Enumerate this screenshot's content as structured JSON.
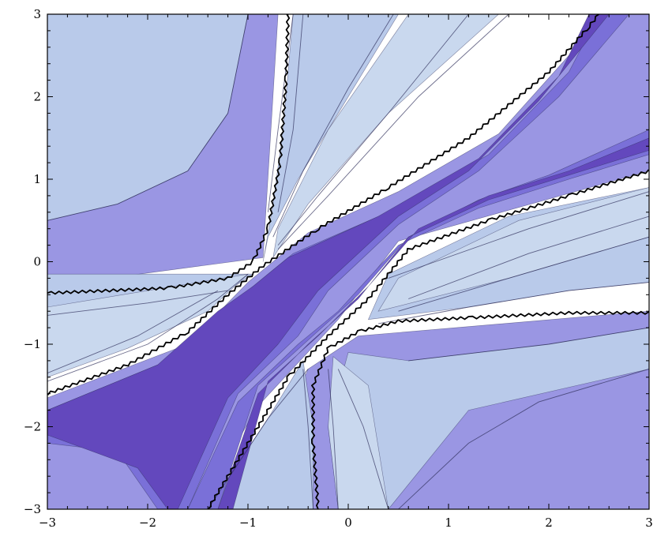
{
  "chart_data": {
    "type": "contour",
    "title": "",
    "xlabel": "",
    "ylabel": "",
    "xlim": [
      -3,
      3
    ],
    "ylim": [
      -3,
      3
    ],
    "grid": false,
    "xticks": [
      {
        "value": -3,
        "label": "−3"
      },
      {
        "value": -2,
        "label": "−2"
      },
      {
        "value": -1,
        "label": "−1"
      },
      {
        "value": 0,
        "label": "0"
      },
      {
        "value": 1,
        "label": "1"
      },
      {
        "value": 2,
        "label": "2"
      },
      {
        "value": 3,
        "label": "3"
      }
    ],
    "yticks": [
      {
        "value": 3,
        "label": "3"
      },
      {
        "value": 2,
        "label": "2"
      },
      {
        "value": 1,
        "label": "1"
      },
      {
        "value": 0,
        "label": "0"
      },
      {
        "value": -1,
        "label": "−1"
      },
      {
        "value": -2,
        "label": "−2"
      },
      {
        "value": -3,
        "label": "−3"
      }
    ],
    "colors": {
      "background": "#9a96e3",
      "deep": "#7a70d8",
      "darkest": "#6348bd",
      "light": "#b9caea",
      "pale": "#c9d8ee",
      "white": "#ffffff",
      "line": "#2e2e5a",
      "zero_curve": "#000000"
    },
    "regions": [
      {
        "fill": "white",
        "polygon": [
          [
            -3,
            -1.65
          ],
          [
            -1.6,
            -1.0
          ],
          [
            -1.0,
            -0.25
          ],
          [
            -0.8,
            -0.05
          ],
          [
            -0.4,
            0.35
          ],
          [
            0.5,
            0.85
          ],
          [
            1.5,
            1.55
          ],
          [
            2.2,
            2.5
          ],
          [
            2.5,
            3
          ],
          [
            -0.7,
            3
          ],
          [
            -0.85,
            0.05
          ],
          [
            -3,
            -0.3
          ],
          [
            -3,
            -3
          ],
          [
            -1.0,
            -3
          ],
          [
            -0.4,
            -1.3
          ],
          [
            0.1,
            -0.9
          ],
          [
            3,
            -0.6
          ],
          [
            3,
            1.1
          ],
          [
            0.5,
            0.25
          ],
          [
            -0.1,
            -0.7
          ],
          [
            -0.9,
            -1.75
          ],
          [
            -1.5,
            -3
          ],
          [
            -3,
            -3
          ]
        ]
      },
      {
        "fill": "light",
        "polygon": [
          [
            -3,
            0.5
          ],
          [
            -2.3,
            0.7
          ],
          [
            -1.6,
            1.1
          ],
          [
            -1.2,
            1.8
          ],
          [
            -1.0,
            3
          ],
          [
            -3,
            3
          ]
        ]
      },
      {
        "fill": "light",
        "polygon": [
          [
            -3,
            -0.65
          ],
          [
            -2.0,
            -0.5
          ],
          [
            -1.2,
            -0.35
          ],
          [
            -0.95,
            -0.15
          ],
          [
            -3,
            -0.15
          ]
        ]
      },
      {
        "fill": "light",
        "polygon": [
          [
            -0.85,
            0.0
          ],
          [
            -0.75,
            0.7
          ],
          [
            -0.65,
            1.6
          ],
          [
            -0.55,
            3
          ],
          [
            0.5,
            3
          ],
          [
            0.1,
            2.2
          ],
          [
            -0.5,
            1.0
          ],
          [
            -0.8,
            0.3
          ]
        ]
      },
      {
        "fill": "pale",
        "polygon": [
          [
            -3,
            -1.4
          ],
          [
            -2.2,
            -1.05
          ],
          [
            -1.4,
            -0.6
          ],
          [
            -1.0,
            -0.15
          ],
          [
            -3,
            -0.55
          ]
        ]
      },
      {
        "fill": "pale",
        "polygon": [
          [
            -0.75,
            0.05
          ],
          [
            -0.4,
            0.7
          ],
          [
            0.4,
            1.8
          ],
          [
            1.5,
            3
          ],
          [
            0.6,
            3
          ],
          [
            -0.2,
            1.6
          ],
          [
            -0.7,
            0.4
          ]
        ]
      },
      {
        "fill": "light",
        "polygon": [
          [
            0.2,
            -0.7
          ],
          [
            1.2,
            -0.55
          ],
          [
            2.2,
            -0.35
          ],
          [
            3,
            -0.25
          ],
          [
            3,
            0.9
          ],
          [
            1.6,
            0.55
          ],
          [
            0.4,
            -0.15
          ]
        ]
      },
      {
        "fill": "pale",
        "polygon": [
          [
            0.3,
            -0.6
          ],
          [
            1.6,
            -0.2
          ],
          [
            3,
            0.3
          ],
          [
            3,
            0.9
          ],
          [
            1.7,
            0.5
          ],
          [
            0.5,
            -0.2
          ]
        ]
      },
      {
        "fill": "light",
        "polygon": [
          [
            0.0,
            -1.1
          ],
          [
            0.6,
            -1.2
          ],
          [
            2.0,
            -1.0
          ],
          [
            3,
            -0.8
          ],
          [
            3,
            -1.3
          ],
          [
            1.2,
            -1.8
          ],
          [
            0.4,
            -3
          ],
          [
            -0.1,
            -3
          ],
          [
            -0.2,
            -2.0
          ]
        ]
      },
      {
        "fill": "pale",
        "polygon": [
          [
            -0.15,
            -1.15
          ],
          [
            0.2,
            -1.5
          ],
          [
            0.4,
            -3
          ],
          [
            -0.1,
            -3
          ],
          [
            -0.2,
            -2.0
          ]
        ]
      },
      {
        "fill": "light",
        "polygon": [
          [
            -0.45,
            -1.2
          ],
          [
            -0.35,
            -2.0
          ],
          [
            -0.35,
            -3
          ],
          [
            -1.4,
            -3
          ],
          [
            -0.8,
            -1.9
          ]
        ]
      },
      {
        "fill": "deep",
        "polygon": [
          [
            -3,
            -1.8
          ],
          [
            -1.8,
            -1.2
          ],
          [
            -1.2,
            -0.55
          ],
          [
            -0.9,
            -0.25
          ],
          [
            -0.55,
            0.1
          ],
          [
            0.4,
            0.6
          ],
          [
            1.4,
            1.3
          ],
          [
            2.2,
            2.3
          ],
          [
            2.5,
            3
          ],
          [
            2.8,
            3
          ],
          [
            2.1,
            2.0
          ],
          [
            1.3,
            1.1
          ],
          [
            0.5,
            0.45
          ],
          [
            -0.2,
            -0.35
          ],
          [
            -0.5,
            -0.9
          ],
          [
            -1.1,
            -1.6
          ],
          [
            -1.6,
            -3
          ],
          [
            -1.9,
            -3
          ],
          [
            -2.3,
            -2.3
          ],
          [
            -3,
            -2.2
          ]
        ]
      },
      {
        "fill": "darkest",
        "polygon": [
          [
            -3,
            -1.8
          ],
          [
            -1.9,
            -1.25
          ],
          [
            -1.3,
            -0.6
          ],
          [
            -0.95,
            -0.3
          ],
          [
            -0.6,
            0.05
          ],
          [
            0.3,
            0.55
          ],
          [
            1.3,
            1.25
          ],
          [
            2.1,
            2.25
          ],
          [
            2.4,
            3
          ],
          [
            2.6,
            3
          ],
          [
            1.9,
            1.95
          ],
          [
            1.2,
            1.1
          ],
          [
            0.5,
            0.55
          ],
          [
            -0.3,
            -0.35
          ],
          [
            -0.7,
            -1.0
          ],
          [
            -1.2,
            -1.65
          ],
          [
            -1.7,
            -3
          ],
          [
            -1.8,
            -3
          ],
          [
            -2.1,
            -2.5
          ],
          [
            -3,
            -2.1
          ]
        ]
      },
      {
        "fill": "deep",
        "polygon": [
          [
            3,
            1.6
          ],
          [
            2.0,
            1.05
          ],
          [
            1.3,
            0.75
          ],
          [
            0.6,
            0.3
          ],
          [
            0.1,
            -0.4
          ],
          [
            -0.4,
            -0.95
          ],
          [
            -0.9,
            -1.5
          ],
          [
            -1.3,
            -3
          ],
          [
            -1.6,
            -3
          ],
          [
            -1.1,
            -1.7
          ],
          [
            -0.5,
            -1.0
          ],
          [
            -0.1,
            -0.6
          ],
          [
            0.5,
            0.2
          ],
          [
            1.3,
            0.65
          ],
          [
            2.2,
            1.0
          ],
          [
            3,
            1.3
          ]
        ]
      },
      {
        "fill": "darkest",
        "polygon": [
          [
            3,
            1.5
          ],
          [
            2.2,
            1.1
          ],
          [
            1.4,
            0.8
          ],
          [
            0.7,
            0.4
          ],
          [
            0.2,
            -0.3
          ],
          [
            -0.3,
            -0.9
          ],
          [
            -0.8,
            -1.45
          ],
          [
            -1.15,
            -3
          ],
          [
            -1.3,
            -3
          ],
          [
            -0.9,
            -1.6
          ],
          [
            -0.4,
            -1.0
          ],
          [
            0.1,
            -0.45
          ],
          [
            0.6,
            0.3
          ],
          [
            1.4,
            0.75
          ],
          [
            2.2,
            1.05
          ],
          [
            3,
            1.35
          ]
        ]
      }
    ],
    "contour_lines": [
      [
        [
          -3,
          0.5
        ],
        [
          -2.3,
          0.7
        ],
        [
          -1.6,
          1.1
        ],
        [
          -1.2,
          1.8
        ],
        [
          -1.0,
          3
        ]
      ],
      [
        [
          -3,
          -0.65
        ],
        [
          -2.0,
          -0.5
        ],
        [
          -1.2,
          -0.35
        ]
      ],
      [
        [
          -0.55,
          3
        ],
        [
          -0.7,
          1.6
        ],
        [
          -0.8,
          0.6
        ]
      ],
      [
        [
          -0.45,
          3
        ],
        [
          -0.55,
          1.6
        ],
        [
          -0.7,
          0.6
        ]
      ],
      [
        [
          0.45,
          3
        ],
        [
          0.0,
          2.1
        ],
        [
          -0.45,
          1.1
        ],
        [
          -0.75,
          0.3
        ]
      ],
      [
        [
          1.2,
          3
        ],
        [
          0.4,
          1.8
        ],
        [
          -0.3,
          0.8
        ],
        [
          -0.7,
          0.2
        ]
      ],
      [
        [
          1.6,
          3
        ],
        [
          0.7,
          2.0
        ],
        [
          -0.2,
          0.8
        ],
        [
          -0.7,
          0.15
        ]
      ],
      [
        [
          -3,
          -1.45
        ],
        [
          -2.0,
          -1.0
        ],
        [
          -1.3,
          -0.45
        ],
        [
          -1.0,
          -0.15
        ]
      ],
      [
        [
          -3,
          -1.35
        ],
        [
          -2.1,
          -0.9
        ],
        [
          -1.3,
          -0.35
        ]
      ],
      [
        [
          3,
          -0.25
        ],
        [
          2.2,
          -0.35
        ],
        [
          1.2,
          -0.55
        ],
        [
          0.3,
          -0.75
        ]
      ],
      [
        [
          3,
          0.3
        ],
        [
          1.6,
          -0.2
        ],
        [
          0.5,
          -0.6
        ]
      ],
      [
        [
          3,
          0.55
        ],
        [
          1.8,
          0.1
        ],
        [
          0.6,
          -0.45
        ]
      ],
      [
        [
          3,
          0.85
        ],
        [
          1.8,
          0.4
        ],
        [
          0.4,
          -0.2
        ]
      ],
      [
        [
          3,
          -1.3
        ],
        [
          1.9,
          -1.7
        ],
        [
          1.2,
          -2.2
        ],
        [
          0.5,
          -3
        ]
      ],
      [
        [
          3,
          -0.8
        ],
        [
          2.0,
          -1.0
        ],
        [
          0.6,
          -1.2
        ]
      ],
      [
        [
          0.4,
          -3
        ],
        [
          0.15,
          -2.0
        ],
        [
          -0.1,
          -1.3
        ]
      ],
      [
        [
          -0.1,
          -3
        ],
        [
          -0.15,
          -2.0
        ],
        [
          -0.2,
          -1.3
        ]
      ],
      [
        [
          -0.35,
          -3
        ],
        [
          -0.4,
          -2.0
        ],
        [
          -0.45,
          -1.3
        ]
      ],
      [
        [
          -1.4,
          -3
        ],
        [
          -0.8,
          -1.9
        ],
        [
          -0.4,
          -1.3
        ]
      ]
    ],
    "zero_curves": [
      [
        [
          -0.6,
          3
        ],
        [
          -0.62,
          2.2
        ],
        [
          -0.68,
          1.2
        ],
        [
          -0.8,
          0.4
        ],
        [
          -0.95,
          0.0
        ],
        [
          -1.2,
          -0.2
        ],
        [
          -1.8,
          -0.32
        ],
        [
          -3,
          -0.38
        ]
      ],
      [
        [
          -3,
          -1.6
        ],
        [
          -2.2,
          -1.25
        ],
        [
          -1.6,
          -0.85
        ],
        [
          -1.2,
          -0.4
        ],
        [
          -0.85,
          -0.05
        ],
        [
          -0.3,
          0.4
        ],
        [
          0.4,
          0.9
        ],
        [
          1.2,
          1.5
        ],
        [
          2.0,
          2.3
        ],
        [
          2.4,
          2.85
        ],
        [
          2.5,
          3
        ]
      ],
      [
        [
          3,
          1.1
        ],
        [
          2.2,
          0.8
        ],
        [
          1.4,
          0.5
        ],
        [
          0.6,
          0.15
        ],
        [
          0.2,
          -0.45
        ],
        [
          -0.2,
          -0.9
        ],
        [
          -0.6,
          -1.4
        ],
        [
          -1.0,
          -2.2
        ],
        [
          -1.4,
          -3
        ]
      ],
      [
        [
          3,
          -0.62
        ],
        [
          2.2,
          -0.62
        ],
        [
          1.2,
          -0.68
        ],
        [
          0.5,
          -0.72
        ],
        [
          0.1,
          -0.85
        ],
        [
          -0.2,
          -1.05
        ],
        [
          -0.35,
          -1.5
        ],
        [
          -0.35,
          -2.2
        ],
        [
          -0.3,
          -3
        ]
      ]
    ]
  }
}
